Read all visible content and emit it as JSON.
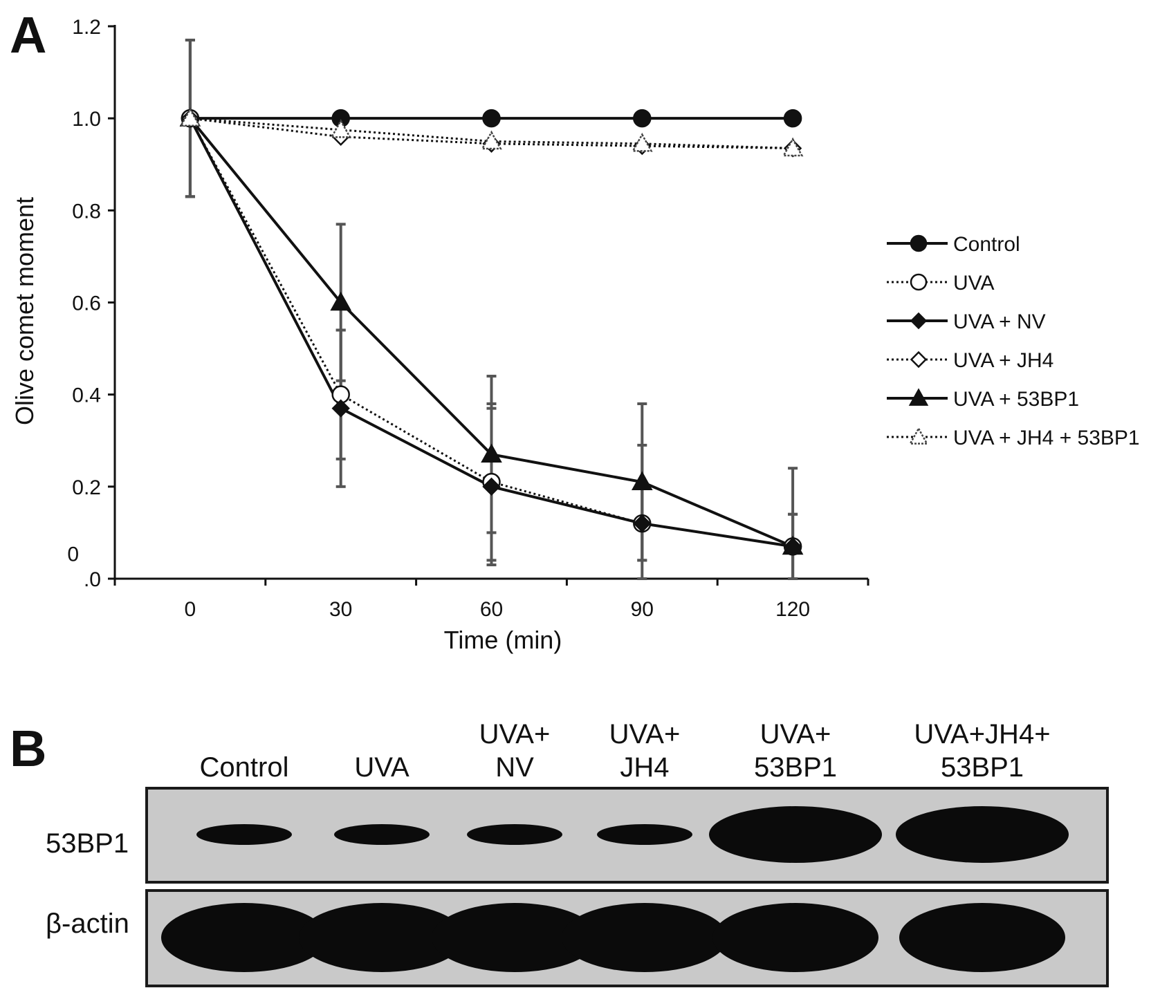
{
  "panel_a": {
    "letter": "A"
  },
  "panel_b": {
    "letter": "B"
  },
  "chart_data": {
    "type": "line",
    "title": "",
    "xlabel": "Time (min)",
    "ylabel": "Olive comet moment",
    "x": [
      0,
      30,
      60,
      90,
      120
    ],
    "x_tick_labels": [
      "0",
      "30",
      "60",
      "90",
      "120"
    ],
    "y_tick_labels": [
      "1.2",
      "1.0",
      "0.8",
      "0.6",
      "0.4",
      "0.2",
      "0",
      ".0"
    ],
    "xlim": [
      -15,
      135
    ],
    "ylim": [
      0,
      1.2
    ],
    "grid": false,
    "legend_position": "right",
    "series": [
      {
        "name": "Control",
        "marker": "circle",
        "filled": true,
        "dashed": false,
        "values": [
          1.0,
          1.0,
          1.0,
          1.0,
          1.0
        ]
      },
      {
        "name": "UVA",
        "marker": "circle",
        "filled": false,
        "dashed": true,
        "values": [
          1.0,
          0.4,
          0.21,
          0.12,
          0.07
        ],
        "error": [
          0.17,
          0.14,
          0.17,
          0.17,
          0.07
        ]
      },
      {
        "name": "UVA + NV",
        "marker": "diamond",
        "filled": true,
        "dashed": false,
        "values": [
          1.0,
          0.37,
          0.2,
          0.12,
          0.07
        ],
        "error": [
          0.17,
          0.17,
          0.17,
          0.08,
          0.07
        ]
      },
      {
        "name": "UVA + JH4",
        "marker": "diamond",
        "filled": false,
        "dashed": true,
        "values": [
          1.0,
          0.96,
          0.945,
          0.94,
          0.935
        ]
      },
      {
        "name": "UVA + 53BP1",
        "marker": "triangle",
        "filled": true,
        "dashed": false,
        "values": [
          1.0,
          0.6,
          0.27,
          0.21,
          0.07
        ],
        "error": [
          0.17,
          0.17,
          0.17,
          0.17,
          0.17
        ]
      },
      {
        "name": "UVA + JH4 + 53BP1",
        "marker": "triangle",
        "filled": false,
        "dashed": true,
        "values": [
          1.0,
          0.975,
          0.95,
          0.945,
          0.935
        ]
      }
    ]
  },
  "blot": {
    "lanes": [
      {
        "line1": "",
        "line2": "Control"
      },
      {
        "line1": "",
        "line2": "UVA"
      },
      {
        "line1": "UVA+",
        "line2": "NV"
      },
      {
        "line1": "UVA+",
        "line2": "JH4"
      },
      {
        "line1": "UVA+",
        "line2": "53BP1"
      },
      {
        "line1": "UVA+JH4+",
        "line2": "53BP1"
      }
    ],
    "rows": [
      {
        "label": "53BP1",
        "band_intensity": [
          0.45,
          0.45,
          0.42,
          0.45,
          1.0,
          1.0
        ]
      },
      {
        "label": "β-actin",
        "band_intensity": [
          1.0,
          1.0,
          1.0,
          1.0,
          1.0,
          1.0
        ]
      }
    ],
    "band_color": "#0b0b0b",
    "membrane_color": "#c9c9c9"
  }
}
